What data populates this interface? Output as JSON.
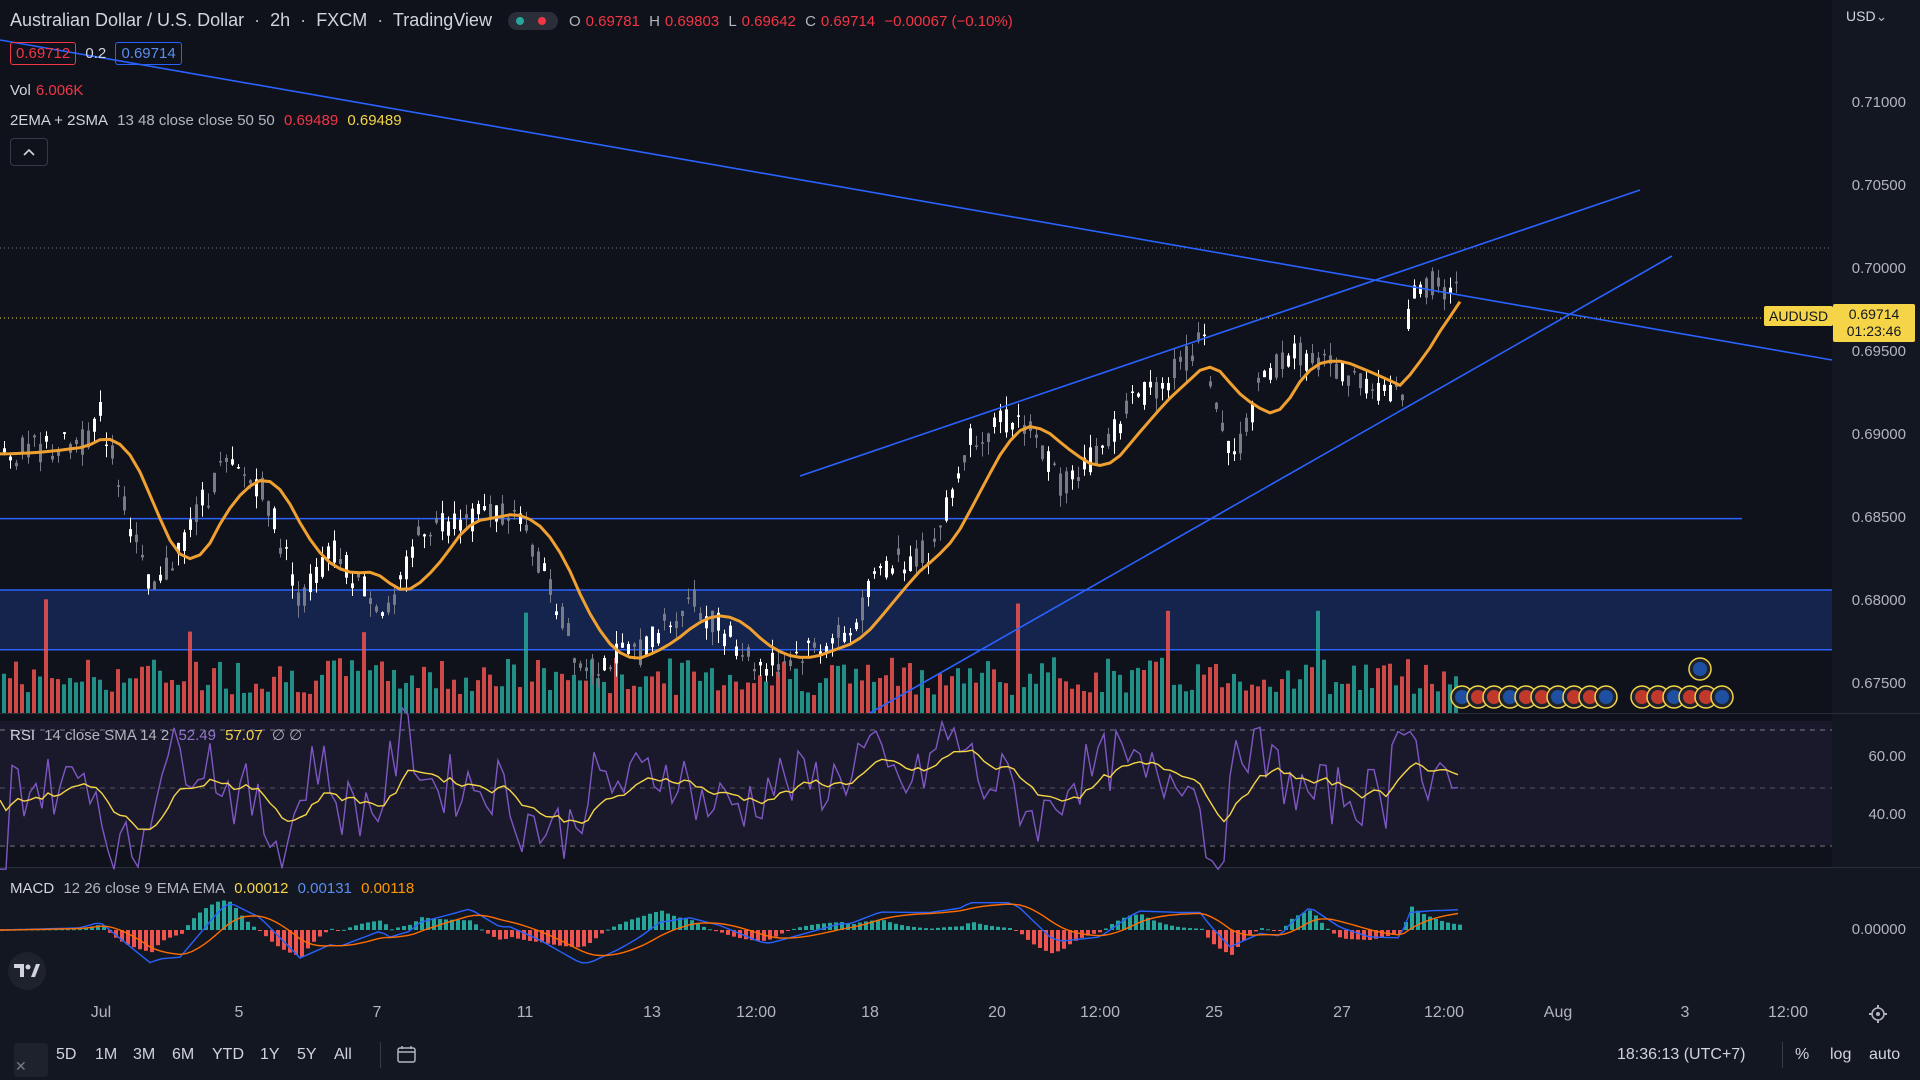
{
  "header": {
    "symbol_name": "Australian Dollar / U.S. Dollar",
    "interval": "2h",
    "exchange": "FXCM",
    "source": "TradingView",
    "ohlc": {
      "o_label": "O",
      "o": "0.69781",
      "h_label": "H",
      "h": "0.69803",
      "l_label": "L",
      "l": "0.69642",
      "c_label": "C",
      "c": "0.69714",
      "change": "−0.00067 (−0.10%)"
    },
    "bid": "0.69712",
    "spread": "0.2",
    "ask": "0.69714",
    "currency": "USD"
  },
  "legends": {
    "vol": {
      "label": "Vol",
      "value": "6.006K"
    },
    "ma": {
      "label": "2EMA + 2SMA",
      "params": "13 48 close close 50 50",
      "v1": "0.69489",
      "v2": "0.69489"
    },
    "rsi": {
      "label": "RSI",
      "params": "14 close SMA 14 2",
      "v1": "52.49",
      "v2": "57.07",
      "v3": "∅ ∅"
    },
    "macd": {
      "label": "MACD",
      "params": "12 26 close 9 EMA EMA",
      "v1": "0.00012",
      "v2": "0.00131",
      "v3": "0.00118"
    }
  },
  "price_axis": {
    "labels": [
      "0.71000",
      "0.70500",
      "0.70000",
      "0.69500",
      "0.69000",
      "0.68500",
      "0.68000",
      "0.67500"
    ],
    "current_symbol": "AUDUSD",
    "current_price": "0.69714",
    "countdown": "01:23:46",
    "rsi_labels": [
      "60.00",
      "40.00"
    ],
    "macd_labels": [
      "0.00000"
    ]
  },
  "time_axis": {
    "labels": [
      "Jul",
      "5",
      "7",
      "11",
      "13",
      "12:00",
      "18",
      "20",
      "12:00",
      "25",
      "27",
      "12:00",
      "Aug",
      "3",
      "12:00"
    ]
  },
  "toolbar": {
    "ranges": [
      "5D",
      "1M",
      "3M",
      "6M",
      "YTD",
      "1Y",
      "5Y",
      "All"
    ],
    "clock": "18:36:13 (UTC+7)",
    "percent": "%",
    "log": "log",
    "auto": "auto"
  },
  "colors": {
    "up": "#ffffff",
    "down": "#787b86",
    "vol_up": "#26a69a",
    "vol_down": "#ef5350",
    "trendline": "#2962ff",
    "sma": "#f0a030",
    "rsi": "#7e57c2",
    "rsi_ma": "#f5d547",
    "macd": "#2962ff",
    "signal": "#ff6d00"
  },
  "icons": {
    "collapse": "chevron-up-icon",
    "logo": "tradingview-logo-icon",
    "settings": "gear-icon",
    "compare": "date-range-icon"
  }
}
